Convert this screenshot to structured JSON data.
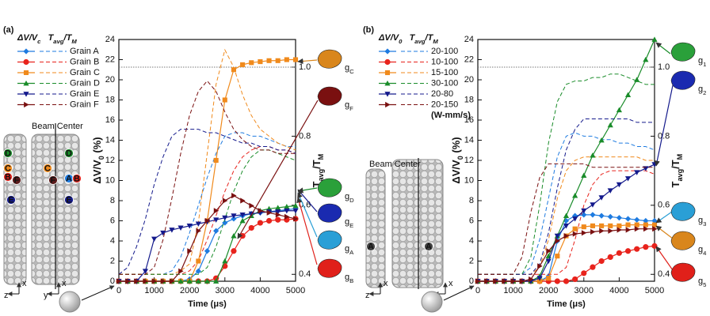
{
  "chart_data": [
    {
      "type": "line",
      "label": "(a)",
      "xlabel": "Time (μs)",
      "ylabel": [
        {
          "text": "ΔV/V",
          "sub": "0"
        },
        {
          "text": " (%)"
        }
      ],
      "y2label": [
        {
          "text": "T",
          "sub": "avg"
        },
        {
          "text": "/T",
          "sub": "M"
        }
      ],
      "legend_header": [
        {
          "text": "ΔV/V",
          "sub": "c"
        },
        {
          "text": "   T",
          "sub": "avg"
        },
        {
          "text": "/T",
          "sub": "M"
        }
      ],
      "xlim": [
        0,
        5000
      ],
      "xticks": [
        0,
        1000,
        2000,
        3000,
        4000,
        5000
      ],
      "ylim": [
        0,
        24
      ],
      "yticks": [
        0,
        2,
        4,
        6,
        8,
        10,
        12,
        14,
        16,
        18,
        20,
        22,
        24
      ],
      "y2lim": [
        0.38,
        1.08
      ],
      "y2ticks": [
        0.4,
        0.6,
        0.8,
        {
          "value": 1.0,
          "label": "1.0"
        }
      ],
      "reference_y2": 1.0,
      "x": [
        0,
        250,
        500,
        750,
        1000,
        1250,
        1500,
        1750,
        2000,
        2250,
        2500,
        2750,
        3000,
        3250,
        3500,
        3750,
        4000,
        4250,
        4500,
        4750,
        5000
      ],
      "series": [
        {
          "name": "Grain A",
          "color": "#1e7be0",
          "marker": "diamond",
          "values": [
            0,
            0,
            0,
            0,
            0,
            0,
            0,
            0,
            0.2,
            1,
            3,
            5,
            5.8,
            6.2,
            6.5,
            6.7,
            6.8,
            6.9,
            7,
            7.1,
            7.2
          ],
          "t_values": [
            0.4,
            0.4,
            0.4,
            0.4,
            0.4,
            0.4,
            0.41,
            0.45,
            0.52,
            0.6,
            0.68,
            0.75,
            0.8,
            0.81,
            0.81,
            0.8,
            0.8,
            0.79,
            0.78,
            0.77,
            0.77
          ]
        },
        {
          "name": "Grain B",
          "color": "#e8231c",
          "marker": "circle",
          "values": [
            0,
            0,
            0,
            0,
            0,
            0,
            0,
            0,
            0,
            0,
            0,
            0.3,
            1.5,
            3,
            4.5,
            5.3,
            5.8,
            6,
            6.1,
            6.1,
            6.2
          ],
          "t_values": [
            0.4,
            0.4,
            0.4,
            0.4,
            0.4,
            0.4,
            0.4,
            0.4,
            0.41,
            0.44,
            0.5,
            0.57,
            0.64,
            0.7,
            0.74,
            0.76,
            0.77,
            0.77,
            0.76,
            0.76,
            0.75
          ]
        },
        {
          "name": "Grain C",
          "color": "#f08a1c",
          "marker": "square",
          "values": [
            0,
            0,
            0,
            0,
            0,
            0,
            0,
            0,
            0,
            2,
            6,
            12,
            18,
            21,
            21.5,
            21.7,
            21.8,
            21.9,
            21.9,
            22,
            22
          ],
          "t_values": [
            0.4,
            0.4,
            0.4,
            0.4,
            0.4,
            0.4,
            0.4,
            0.41,
            0.43,
            0.55,
            0.75,
            0.95,
            1.05,
            1.0,
            0.92,
            0.86,
            0.82,
            0.8,
            0.78,
            0.77,
            0.76
          ]
        },
        {
          "name": "Grain D",
          "color": "#1a8c2a",
          "marker": "triangle-up",
          "values": [
            0,
            0,
            0,
            0,
            0,
            0,
            0,
            0,
            0,
            0,
            0,
            0,
            2,
            4.5,
            6,
            6.5,
            7,
            7.2,
            7.3,
            7.4,
            7.5
          ],
          "t_values": [
            0.4,
            0.4,
            0.4,
            0.4,
            0.4,
            0.4,
            0.4,
            0.4,
            0.4,
            0.4,
            0.42,
            0.48,
            0.56,
            0.64,
            0.7,
            0.74,
            0.76,
            0.76,
            0.75,
            0.74,
            0.73
          ]
        },
        {
          "name": "Grain E",
          "color": "#141a8c",
          "marker": "triangle-down",
          "values": [
            0,
            0,
            0,
            1,
            4.2,
            4.8,
            5.1,
            5.3,
            5.5,
            5.7,
            5.9,
            6.1,
            6.3,
            6.5,
            6.6,
            6.7,
            6.8,
            6.9,
            6.9,
            7,
            7
          ],
          "t_values": [
            0.4,
            0.42,
            0.48,
            0.56,
            0.66,
            0.74,
            0.8,
            0.82,
            0.82,
            0.82,
            0.81,
            0.81,
            0.8,
            0.79,
            0.78,
            0.78,
            0.77,
            0.77,
            0.76,
            0.76,
            0.75
          ]
        },
        {
          "name": "Grain F",
          "color": "#7a1010",
          "marker": "triangle-right",
          "values": [
            0,
            0,
            0,
            0,
            0,
            0,
            0,
            1,
            3,
            5,
            6,
            7,
            8,
            8.5,
            8,
            7.5,
            7,
            6.8,
            6.6,
            6.4,
            6.2
          ],
          "t_values": [
            0.4,
            0.4,
            0.4,
            0.4,
            0.42,
            0.5,
            0.62,
            0.75,
            0.86,
            0.93,
            0.96,
            0.93,
            0.87,
            0.82,
            0.79,
            0.77,
            0.76,
            0.76,
            0.75,
            0.75,
            0.75
          ]
        }
      ],
      "grain_labels": [
        {
          "text": "g",
          "sub": "C",
          "color": "#d9861c"
        },
        {
          "text": "g",
          "sub": "F",
          "color": "#7a1010"
        },
        {
          "text": "g",
          "sub": "D",
          "color": "#2aa03a"
        },
        {
          "text": "g",
          "sub": "E",
          "color": "#1a2ab0"
        },
        {
          "text": "g",
          "sub": "A",
          "color": "#2a9fd6"
        },
        {
          "text": "g",
          "sub": "B",
          "color": "#e0201a"
        }
      ],
      "inset": {
        "title": "Beam Center",
        "markers": [
          {
            "label": "D",
            "color": "#1a8c2a"
          },
          {
            "label": "C",
            "color": "#f08a1c"
          },
          {
            "label": "B",
            "color": "#e8231c"
          },
          {
            "label": "F",
            "color": "#5a1a1a"
          },
          {
            "label": "E",
            "color": "#141a8c"
          },
          {
            "label": "D",
            "color": "#1a8c2a"
          },
          {
            "label": "C",
            "color": "#f08a1c"
          },
          {
            "label": "F",
            "color": "#5a1a1a"
          },
          {
            "label": "A",
            "color": "#1e7be0"
          },
          {
            "label": "B",
            "color": "#e8231c"
          },
          {
            "label": "E",
            "color": "#141a8c"
          }
        ],
        "axes": [
          "z",
          "x",
          "y",
          "x"
        ]
      }
    },
    {
      "type": "line",
      "label": "(b)",
      "xlabel": "Time (μs)",
      "ylabel": [
        {
          "text": "ΔV/V",
          "sub": "0"
        },
        {
          "text": " (%)"
        }
      ],
      "y2label": [
        {
          "text": "T",
          "sub": "avg"
        },
        {
          "text": "/T",
          "sub": "M"
        }
      ],
      "legend_header": [
        {
          "text": "ΔV/V",
          "sub": "0"
        },
        {
          "text": "   T",
          "sub": "avg"
        },
        {
          "text": "/T",
          "sub": "M"
        }
      ],
      "legend_note": "(W-mm/s)",
      "xlim": [
        0,
        5000
      ],
      "xticks": [
        0,
        1000,
        2000,
        3000,
        4000,
        5000
      ],
      "ylim": [
        0,
        24
      ],
      "yticks": [
        0,
        2,
        4,
        6,
        8,
        10,
        12,
        14,
        16,
        18,
        20,
        22,
        24
      ],
      "y2lim": [
        0.38,
        1.08
      ],
      "y2ticks": [
        0.4,
        0.6,
        0.8,
        {
          "value": 1.0,
          "label": "1.0"
        }
      ],
      "reference_y2": 1.0,
      "x": [
        0,
        250,
        500,
        750,
        1000,
        1250,
        1500,
        1750,
        2000,
        2250,
        2500,
        2750,
        3000,
        3250,
        3500,
        3750,
        4000,
        4250,
        4500,
        4750,
        5000
      ],
      "series": [
        {
          "name": "20-100",
          "color": "#1e7be0",
          "marker": "diamond",
          "values": [
            0,
            0,
            0,
            0,
            0,
            0,
            0,
            0,
            0.5,
            4,
            6,
            6.5,
            6.6,
            6.6,
            6.5,
            6.4,
            6.3,
            6.2,
            6.1,
            6,
            6
          ],
          "t_values": [
            0.4,
            0.4,
            0.4,
            0.4,
            0.4,
            0.4,
            0.42,
            0.5,
            0.62,
            0.74,
            0.8,
            0.81,
            0.8,
            0.8,
            0.79,
            0.79,
            0.78,
            0.78,
            0.77,
            0.77,
            0.76
          ]
        },
        {
          "name": "10-100",
          "color": "#e8231c",
          "marker": "circle",
          "values": [
            0,
            0,
            0,
            0,
            0,
            0,
            0,
            0,
            0,
            0,
            0,
            0.2,
            0.8,
            1.4,
            2,
            2.4,
            2.8,
            3,
            3.2,
            3.4,
            3.5
          ],
          "t_values": [
            0.4,
            0.4,
            0.4,
            0.4,
            0.4,
            0.4,
            0.4,
            0.4,
            0.4,
            0.4,
            0.42,
            0.5,
            0.6,
            0.66,
            0.69,
            0.7,
            0.7,
            0.7,
            0.7,
            0.7,
            0.69
          ]
        },
        {
          "name": "15-100",
          "color": "#f08a1c",
          "marker": "square",
          "values": [
            0,
            0,
            0,
            0,
            0,
            0,
            0,
            0,
            0.3,
            2.5,
            4.5,
            5.2,
            5.4,
            5.5,
            5.5,
            5.5,
            5.5,
            5.6,
            5.6,
            5.6,
            5.6
          ],
          "t_values": [
            0.4,
            0.4,
            0.4,
            0.4,
            0.4,
            0.4,
            0.4,
            0.42,
            0.5,
            0.62,
            0.7,
            0.73,
            0.74,
            0.74,
            0.74,
            0.74,
            0.74,
            0.74,
            0.74,
            0.73,
            0.73
          ]
        },
        {
          "name": "30-100",
          "color": "#1a8c2a",
          "marker": "triangle-up",
          "values": [
            0,
            0,
            0,
            0,
            0,
            0,
            0,
            0.5,
            2.5,
            4.5,
            6.5,
            8.5,
            10.5,
            12.5,
            14,
            15.5,
            17,
            18.5,
            20,
            22,
            24
          ],
          "t_values": [
            0.4,
            0.4,
            0.4,
            0.4,
            0.4,
            0.4,
            0.45,
            0.6,
            0.78,
            0.9,
            0.95,
            0.96,
            0.96,
            0.97,
            0.97,
            0.98,
            0.98,
            0.97,
            0.96,
            0.95,
            0.95
          ]
        },
        {
          "name": "20-80",
          "color": "#141a8c",
          "marker": "triangle-down",
          "values": [
            0,
            0,
            0,
            0,
            0,
            0,
            0,
            0.3,
            2,
            4.5,
            5.5,
            6.2,
            7,
            7.6,
            8.3,
            9,
            9.6,
            10.2,
            10.8,
            11.2,
            11.6
          ],
          "t_values": [
            0.4,
            0.4,
            0.4,
            0.4,
            0.4,
            0.4,
            0.4,
            0.43,
            0.52,
            0.65,
            0.76,
            0.82,
            0.85,
            0.85,
            0.85,
            0.85,
            0.85,
            0.85,
            0.84,
            0.84,
            0.84
          ]
        },
        {
          "name": "20-150",
          "color": "#7a1010",
          "marker": "triangle-right",
          "values": [
            0,
            0,
            0,
            0,
            0,
            0,
            0.2,
            1.5,
            3,
            4,
            4.5,
            4.7,
            4.8,
            4.9,
            5,
            5,
            5.1,
            5.1,
            5.2,
            5.2,
            5.2
          ],
          "t_values": [
            0.4,
            0.4,
            0.4,
            0.4,
            0.4,
            0.45,
            0.58,
            0.68,
            0.72,
            0.72,
            0.72,
            0.72,
            0.72,
            0.71,
            0.71,
            0.71,
            0.71,
            0.71,
            0.71,
            0.71,
            0.71
          ]
        }
      ],
      "grain_labels": [
        {
          "text": "g",
          "sub": "1",
          "color": "#2aa03a"
        },
        {
          "text": "g",
          "sub": "2",
          "color": "#1a2ab0"
        },
        {
          "text": "g",
          "sub": "3",
          "color": "#2a9fd6"
        },
        {
          "text": "g",
          "sub": "4",
          "color": "#d9861c"
        },
        {
          "text": "g",
          "sub": "5",
          "color": "#e0201a"
        }
      ],
      "inset": {
        "title": "Beam Center",
        "markers": [
          {
            "label": "A",
            "color": "#444444"
          },
          {
            "label": "A",
            "color": "#444444"
          }
        ],
        "axes": [
          "z",
          "x",
          "y",
          "x"
        ]
      }
    }
  ]
}
